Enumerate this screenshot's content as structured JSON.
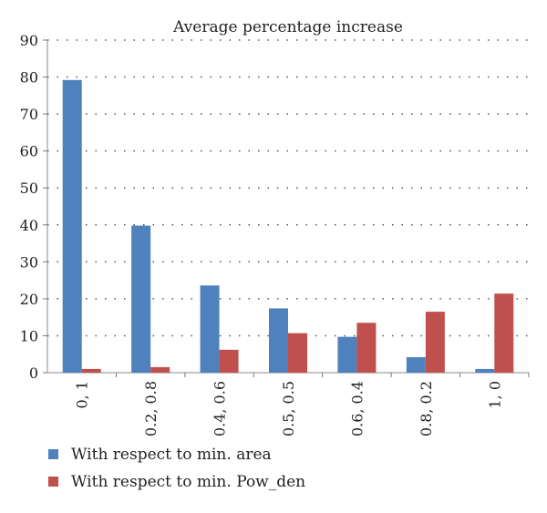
{
  "chart_data": {
    "type": "bar",
    "title": "Average percentage increase",
    "xlabel": "",
    "ylabel": "",
    "categories": [
      "0, 1",
      "0.2, 0.8",
      "0.4, 0.6",
      "0.5, 0.5",
      "0.6, 0.4",
      "0.8, 0.2",
      "1, 0"
    ],
    "series": [
      {
        "name": "With respect to min. area",
        "color": "#4f81bd",
        "values": [
          79.2,
          39.8,
          23.6,
          17.4,
          9.7,
          4.2,
          1.0
        ]
      },
      {
        "name": "With respect to min. Pow_den",
        "color": "#c0504d",
        "values": [
          1.0,
          1.5,
          6.2,
          10.7,
          13.5,
          16.5,
          21.4
        ]
      }
    ],
    "ylim": [
      0,
      90
    ],
    "yticks": [
      0,
      10,
      20,
      30,
      40,
      50,
      60,
      70,
      80,
      90
    ],
    "grid": true,
    "legend_position": "bottom-left"
  }
}
